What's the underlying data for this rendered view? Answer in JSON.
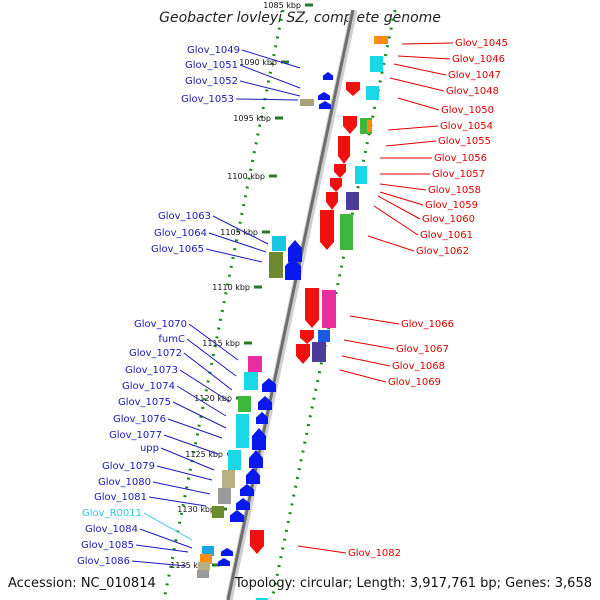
{
  "title": "Geobacter lovleyi SZ, complete genome",
  "footer": {
    "accession": "Accession: NC_010814",
    "topology": "Topology: circular; Length: 3,917,761 bp; Genes: 3,658"
  },
  "colors": {
    "forward_label": "#1a1ab8",
    "reverse_label": "#e00000",
    "rna_label": "#30c8e0",
    "axis": "#777777",
    "track_dots": "#1a8a1a"
  },
  "ticks": [
    "1085 kbp",
    "1090 kbp",
    "1095 kbp",
    "1100 kbp",
    "1105 kbp",
    "1110 kbp",
    "1115 kbp",
    "1120 kbp",
    "1125 kbp",
    "1130 kbp",
    "1135 kbp"
  ],
  "left_labels": [
    "Glov_1049",
    "Glov_1051",
    "Glov_1052",
    "Glov_1053",
    "Glov_1063",
    "Glov_1064",
    "Glov_1065",
    "Glov_1070",
    "fumC",
    "Glov_1072",
    "Glov_1073",
    "Glov_1074",
    "Glov_1075",
    "Glov_1076",
    "Glov_1077",
    "upp",
    "Glov_1079",
    "Glov_1080",
    "Glov_1081",
    "Glov_R0011",
    "Glov_1084",
    "Glov_1085",
    "Glov_1086"
  ],
  "right_labels": [
    "Glov_1045",
    "Glov_1046",
    "Glov_1047",
    "Glov_1048",
    "Glov_1050",
    "Glov_1054",
    "Glov_1055",
    "Glov_1056",
    "Glov_1057",
    "Glov_1058",
    "Glov_1059",
    "Glov_1060",
    "Glov_1061",
    "Glov_1062",
    "Glov_1066",
    "Glov_1067",
    "Glov_1068",
    "Glov_1069",
    "Glov_1082"
  ]
}
